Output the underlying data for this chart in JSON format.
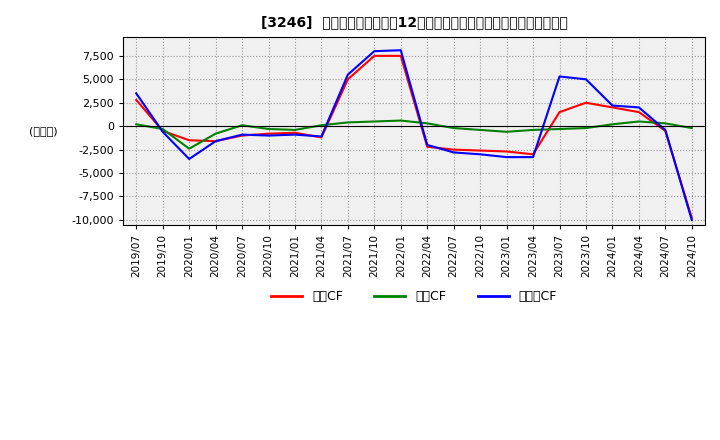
{
  "title": "[3246]  キャッシュフローの12か月移動合計の対前年同期増減額の推移",
  "ylabel": "(百万円)",
  "ylim": [
    -10500,
    9500
  ],
  "yticks": [
    -10000,
    -7500,
    -5000,
    -2500,
    0,
    2500,
    5000,
    7500
  ],
  "legend": [
    "営業CF",
    "投資CF",
    "フリーCF"
  ],
  "legend_colors": [
    "#ff0000",
    "#008000",
    "#0000ff"
  ],
  "x_labels": [
    "2019/07",
    "2019/10",
    "2020/01",
    "2020/04",
    "2020/07",
    "2020/10",
    "2021/01",
    "2021/04",
    "2021/07",
    "2021/10",
    "2022/01",
    "2022/04",
    "2022/07",
    "2022/10",
    "2023/01",
    "2023/04",
    "2023/07",
    "2023/10",
    "2024/01",
    "2024/04",
    "2024/07",
    "2024/10"
  ],
  "operating_cf": [
    2800,
    -500,
    -1500,
    -1600,
    -1000,
    -800,
    -700,
    -1200,
    5000,
    7500,
    7500,
    -2200,
    -2500,
    -2600,
    -2700,
    -3000,
    1500,
    2500,
    2000,
    1500,
    -500,
    -9800
  ],
  "investing_cf": [
    200,
    -300,
    -2400,
    -800,
    100,
    -300,
    -400,
    100,
    400,
    500,
    600,
    300,
    -200,
    -400,
    -600,
    -400,
    -300,
    -200,
    200,
    500,
    300,
    -200
  ],
  "free_cf": [
    3500,
    -600,
    -3500,
    -1600,
    -900,
    -1000,
    -900,
    -1100,
    5500,
    8000,
    8100,
    -2000,
    -2800,
    -3000,
    -3300,
    -3300,
    5300,
    5000,
    2200,
    2000,
    -400,
    -10000
  ]
}
